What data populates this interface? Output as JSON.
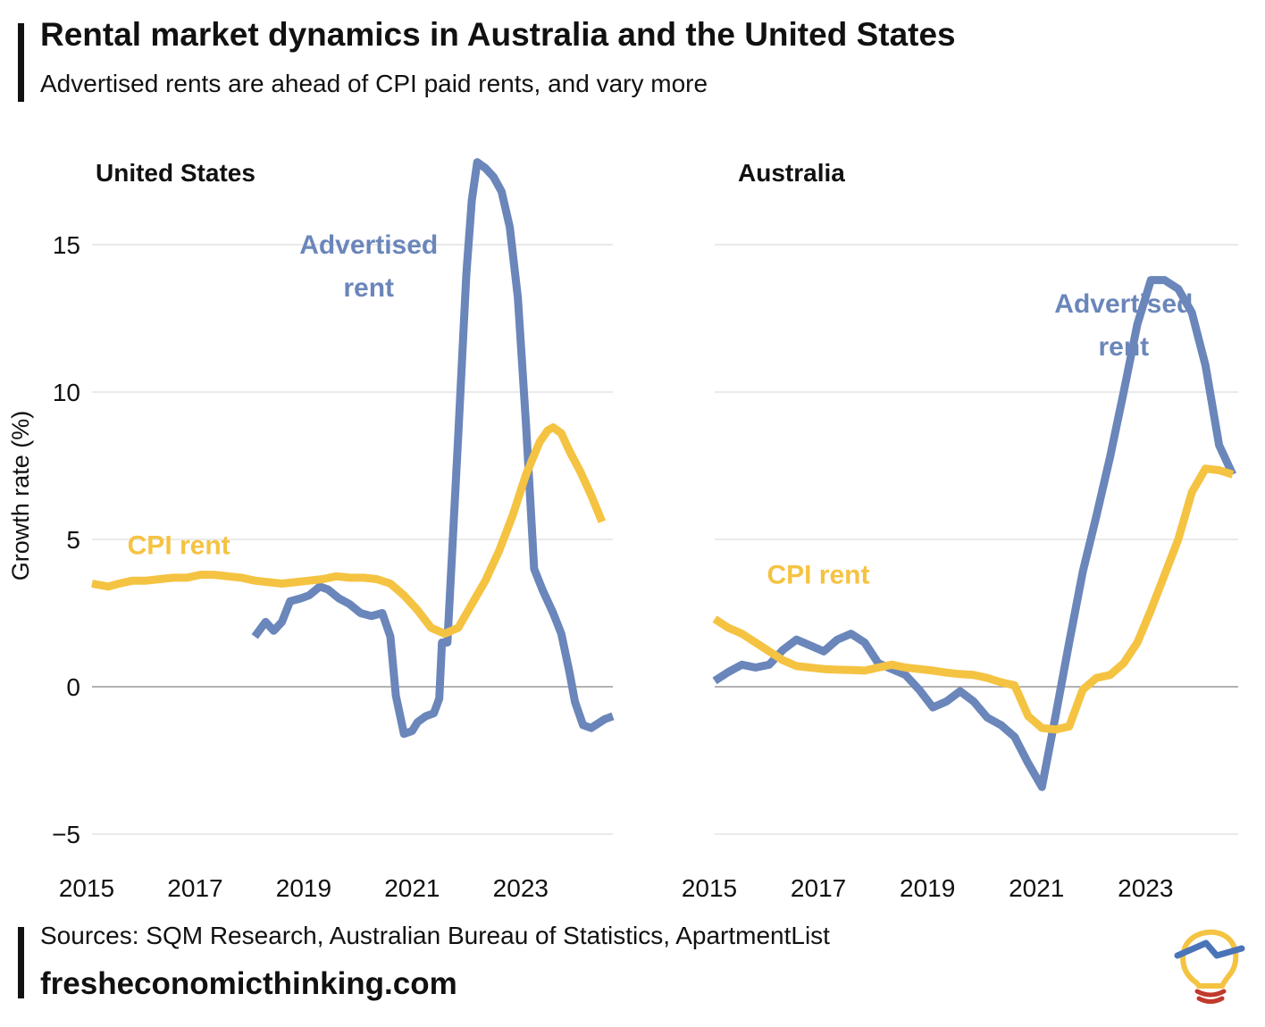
{
  "header": {
    "title": "Rental market dynamics in Australia and the United States",
    "subtitle": "Advertised rents are ahead of CPI paid rents, and vary more"
  },
  "footer": {
    "sources": "Sources: SQM Research, Australian Bureau of Statistics, ApartmentList",
    "website": "fresheconomicthinking.com"
  },
  "colors": {
    "advertised": "#6a86ba",
    "cpi": "#f5c342",
    "grid": "#dddddd",
    "zero": "#999999",
    "logo_red": "#c0392b"
  },
  "chart_data": [
    {
      "type": "line",
      "title": "United States",
      "ylabel": "Growth rate (%)",
      "xlabel": "",
      "xlim": [
        2015,
        2024.6
      ],
      "ylim": [
        -6,
        18
      ],
      "yticks": [
        -5,
        0,
        5,
        10,
        15
      ],
      "ytick_labels": [
        "−5",
        "0",
        "5",
        "10",
        "15"
      ],
      "xticks": [
        2015,
        2017,
        2019,
        2021,
        2023
      ],
      "xtick_labels": [
        "2015",
        "2017",
        "2019",
        "2021",
        "2023"
      ],
      "series": [
        {
          "name": "Advertised",
          "label_lines": [
            "Advertised",
            "rent"
          ],
          "label_anchor": [
            2020.1,
            15
          ],
          "color_key": "advertised",
          "points": [
            [
              2018.0,
              1.7
            ],
            [
              2018.2,
              2.2
            ],
            [
              2018.35,
              1.9
            ],
            [
              2018.5,
              2.2
            ],
            [
              2018.65,
              2.9
            ],
            [
              2018.85,
              3.0
            ],
            [
              2019.0,
              3.1
            ],
            [
              2019.2,
              3.4
            ],
            [
              2019.35,
              3.3
            ],
            [
              2019.55,
              3.0
            ],
            [
              2019.75,
              2.8
            ],
            [
              2019.95,
              2.5
            ],
            [
              2020.15,
              2.4
            ],
            [
              2020.35,
              2.5
            ],
            [
              2020.5,
              1.7
            ],
            [
              2020.6,
              -0.3
            ],
            [
              2020.75,
              -1.6
            ],
            [
              2020.9,
              -1.5
            ],
            [
              2021.0,
              -1.2
            ],
            [
              2021.15,
              -1.0
            ],
            [
              2021.3,
              -0.9
            ],
            [
              2021.4,
              -0.4
            ],
            [
              2021.45,
              1.5
            ],
            [
              2021.55,
              1.5
            ],
            [
              2021.75,
              8.5
            ],
            [
              2021.9,
              14.0
            ],
            [
              2022.0,
              16.5
            ],
            [
              2022.1,
              17.8
            ],
            [
              2022.25,
              17.6
            ],
            [
              2022.4,
              17.3
            ],
            [
              2022.55,
              16.8
            ],
            [
              2022.7,
              15.6
            ],
            [
              2022.85,
              13.2
            ],
            [
              2023.0,
              8.9
            ],
            [
              2023.15,
              4.0
            ],
            [
              2023.3,
              3.3
            ],
            [
              2023.5,
              2.5
            ],
            [
              2023.65,
              1.8
            ],
            [
              2023.8,
              0.5
            ],
            [
              2023.9,
              -0.5
            ],
            [
              2024.05,
              -1.3
            ],
            [
              2024.2,
              -1.4
            ],
            [
              2024.45,
              -1.1
            ],
            [
              2024.6,
              -1.0
            ]
          ]
        },
        {
          "name": "CPI rent",
          "label_lines": [
            "CPI rent"
          ],
          "label_anchor": [
            2016.6,
            4.8
          ],
          "color_key": "cpi",
          "points": [
            [
              2015.0,
              3.5
            ],
            [
              2015.3,
              3.4
            ],
            [
              2015.5,
              3.5
            ],
            [
              2015.75,
              3.6
            ],
            [
              2016.0,
              3.6
            ],
            [
              2016.25,
              3.65
            ],
            [
              2016.5,
              3.7
            ],
            [
              2016.75,
              3.7
            ],
            [
              2017.0,
              3.8
            ],
            [
              2017.25,
              3.8
            ],
            [
              2017.5,
              3.75
            ],
            [
              2017.75,
              3.7
            ],
            [
              2018.0,
              3.6
            ],
            [
              2018.25,
              3.55
            ],
            [
              2018.5,
              3.5
            ],
            [
              2018.75,
              3.55
            ],
            [
              2019.0,
              3.6
            ],
            [
              2019.25,
              3.65
            ],
            [
              2019.5,
              3.75
            ],
            [
              2019.75,
              3.7
            ],
            [
              2020.0,
              3.7
            ],
            [
              2020.25,
              3.65
            ],
            [
              2020.5,
              3.5
            ],
            [
              2020.75,
              3.1
            ],
            [
              2021.0,
              2.6
            ],
            [
              2021.25,
              2.0
            ],
            [
              2021.5,
              1.8
            ],
            [
              2021.75,
              2.0
            ],
            [
              2022.0,
              2.8
            ],
            [
              2022.25,
              3.6
            ],
            [
              2022.5,
              4.6
            ],
            [
              2022.75,
              5.8
            ],
            [
              2023.0,
              7.2
            ],
            [
              2023.25,
              8.3
            ],
            [
              2023.4,
              8.7
            ],
            [
              2023.5,
              8.8
            ],
            [
              2023.65,
              8.6
            ],
            [
              2023.8,
              8.0
            ],
            [
              2024.0,
              7.3
            ],
            [
              2024.2,
              6.5
            ],
            [
              2024.4,
              5.6
            ]
          ]
        }
      ]
    },
    {
      "type": "line",
      "title": "Australia",
      "ylabel": "",
      "xlabel": "",
      "xlim": [
        2015,
        2024.6
      ],
      "ylim": [
        -6,
        18
      ],
      "yticks": [
        -5,
        0,
        5,
        10,
        15
      ],
      "ytick_labels": [],
      "xticks": [
        2015,
        2017,
        2019,
        2021,
        2023
      ],
      "xtick_labels": [
        "2015",
        "2017",
        "2019",
        "2021",
        "2023"
      ],
      "series": [
        {
          "name": "Advertised",
          "label_lines": [
            "Advertised",
            "rent"
          ],
          "label_anchor": [
            2022.5,
            13
          ],
          "color_key": "advertised",
          "points": [
            [
              2015.0,
              0.2
            ],
            [
              2015.25,
              0.5
            ],
            [
              2015.5,
              0.75
            ],
            [
              2015.75,
              0.65
            ],
            [
              2016.0,
              0.75
            ],
            [
              2016.25,
              1.25
            ],
            [
              2016.5,
              1.6
            ],
            [
              2016.75,
              1.4
            ],
            [
              2017.0,
              1.2
            ],
            [
              2017.25,
              1.6
            ],
            [
              2017.5,
              1.8
            ],
            [
              2017.75,
              1.5
            ],
            [
              2018.0,
              0.8
            ],
            [
              2018.25,
              0.6
            ],
            [
              2018.5,
              0.4
            ],
            [
              2018.75,
              -0.1
            ],
            [
              2019.0,
              -0.7
            ],
            [
              2019.25,
              -0.5
            ],
            [
              2019.5,
              -0.15
            ],
            [
              2019.75,
              -0.5
            ],
            [
              2020.0,
              -1.05
            ],
            [
              2020.25,
              -1.3
            ],
            [
              2020.5,
              -1.7
            ],
            [
              2020.75,
              -2.6
            ],
            [
              2021.0,
              -3.4
            ],
            [
              2021.25,
              -1.0
            ],
            [
              2021.5,
              1.5
            ],
            [
              2021.75,
              3.9
            ],
            [
              2022.0,
              5.8
            ],
            [
              2022.25,
              7.8
            ],
            [
              2022.5,
              10.0
            ],
            [
              2022.75,
              12.3
            ],
            [
              2023.0,
              13.8
            ],
            [
              2023.25,
              13.8
            ],
            [
              2023.5,
              13.5
            ],
            [
              2023.75,
              12.7
            ],
            [
              2024.0,
              10.9
            ],
            [
              2024.25,
              8.2
            ],
            [
              2024.5,
              7.2
            ]
          ]
        },
        {
          "name": "CPI rent",
          "label_lines": [
            "CPI rent"
          ],
          "label_anchor": [
            2016.9,
            3.8
          ],
          "color_key": "cpi",
          "points": [
            [
              2015.0,
              2.3
            ],
            [
              2015.25,
              2.0
            ],
            [
              2015.5,
              1.8
            ],
            [
              2015.75,
              1.5
            ],
            [
              2016.0,
              1.2
            ],
            [
              2016.25,
              0.9
            ],
            [
              2016.5,
              0.7
            ],
            [
              2016.75,
              0.65
            ],
            [
              2017.0,
              0.6
            ],
            [
              2017.25,
              0.58
            ],
            [
              2017.5,
              0.57
            ],
            [
              2017.75,
              0.55
            ],
            [
              2018.0,
              0.65
            ],
            [
              2018.25,
              0.75
            ],
            [
              2018.5,
              0.65
            ],
            [
              2018.75,
              0.6
            ],
            [
              2019.0,
              0.55
            ],
            [
              2019.25,
              0.48
            ],
            [
              2019.5,
              0.43
            ],
            [
              2019.75,
              0.4
            ],
            [
              2020.0,
              0.3
            ],
            [
              2020.25,
              0.15
            ],
            [
              2020.5,
              0.05
            ],
            [
              2020.75,
              -1.0
            ],
            [
              2021.0,
              -1.4
            ],
            [
              2021.25,
              -1.45
            ],
            [
              2021.5,
              -1.35
            ],
            [
              2021.75,
              -0.1
            ],
            [
              2022.0,
              0.3
            ],
            [
              2022.25,
              0.4
            ],
            [
              2022.5,
              0.8
            ],
            [
              2022.75,
              1.5
            ],
            [
              2023.0,
              2.6
            ],
            [
              2023.25,
              3.8
            ],
            [
              2023.5,
              5.0
            ],
            [
              2023.75,
              6.6
            ],
            [
              2024.0,
              7.4
            ],
            [
              2024.25,
              7.35
            ],
            [
              2024.5,
              7.2
            ]
          ]
        }
      ]
    }
  ]
}
